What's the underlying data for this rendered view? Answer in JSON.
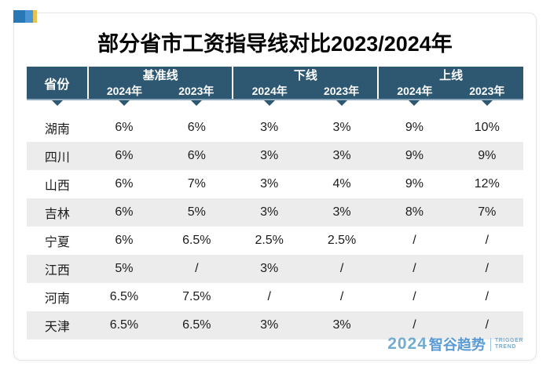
{
  "page": {
    "title": "部分省市工资指导线对比2023/2024年"
  },
  "colors": {
    "header_bg": "#2e5872",
    "header_underline": "#8fa9bd",
    "row_alt_bg": "#ececec",
    "logo_blue": "#5b9bd5",
    "deco_dark_blue": "#2878b8",
    "deco_light_blue": "#4a96d2",
    "deco_yellow": "#e6c44d"
  },
  "table": {
    "province_header": "省份",
    "groups": [
      {
        "label": "基准线",
        "years": [
          "2024年",
          "2023年"
        ]
      },
      {
        "label": "下线",
        "years": [
          "2024年",
          "2023年"
        ]
      },
      {
        "label": "上线",
        "years": [
          "2024年",
          "2023年"
        ]
      }
    ],
    "rows": [
      {
        "province": "湖南",
        "values": [
          "6%",
          "6%",
          "3%",
          "3%",
          "9%",
          "10%"
        ]
      },
      {
        "province": "四川",
        "values": [
          "6%",
          "6%",
          "3%",
          "3%",
          "9%",
          "9%"
        ]
      },
      {
        "province": "山西",
        "values": [
          "6%",
          "7%",
          "3%",
          "4%",
          "9%",
          "12%"
        ]
      },
      {
        "province": "吉林",
        "values": [
          "6%",
          "5%",
          "3%",
          "3%",
          "8%",
          "7%"
        ]
      },
      {
        "province": "宁夏",
        "values": [
          "6%",
          "6.5%",
          "2.5%",
          "2.5%",
          "/",
          "/"
        ]
      },
      {
        "province": "江西",
        "values": [
          "5%",
          "/",
          "3%",
          "/",
          "/",
          "/"
        ]
      },
      {
        "province": "河南",
        "values": [
          "6.5%",
          "7.5%",
          "/",
          "/",
          "/",
          "/"
        ]
      },
      {
        "province": "天津",
        "values": [
          "6.5%",
          "6.5%",
          "3%",
          "3%",
          "/",
          "/"
        ]
      }
    ]
  },
  "footer": {
    "logo_year": "2024",
    "logo_brand": "智谷趋势",
    "tagline_line1": "TRIGGER",
    "tagline_line2": "TREND"
  },
  "chart_data": {
    "type": "table",
    "title": "部分省市工资指导线对比2023/2024年",
    "column_groups": [
      "基准线",
      "下线",
      "上线"
    ],
    "columns": [
      "省份",
      "基准线 2024年",
      "基准线 2023年",
      "下线 2024年",
      "下线 2023年",
      "上线 2024年",
      "上线 2023年"
    ],
    "rows": [
      [
        "湖南",
        "6%",
        "6%",
        "3%",
        "3%",
        "9%",
        "10%"
      ],
      [
        "四川",
        "6%",
        "6%",
        "3%",
        "3%",
        "9%",
        "9%"
      ],
      [
        "山西",
        "6%",
        "7%",
        "3%",
        "4%",
        "9%",
        "12%"
      ],
      [
        "吉林",
        "6%",
        "5%",
        "3%",
        "3%",
        "8%",
        "7%"
      ],
      [
        "宁夏",
        "6%",
        "6.5%",
        "2.5%",
        "2.5%",
        "/",
        "/"
      ],
      [
        "江西",
        "5%",
        "/",
        "3%",
        "/",
        "/",
        "/"
      ],
      [
        "河南",
        "6.5%",
        "7.5%",
        "/",
        "/",
        "/",
        "/"
      ],
      [
        "天津",
        "6.5%",
        "6.5%",
        "3%",
        "3%",
        "/",
        "/"
      ]
    ]
  }
}
